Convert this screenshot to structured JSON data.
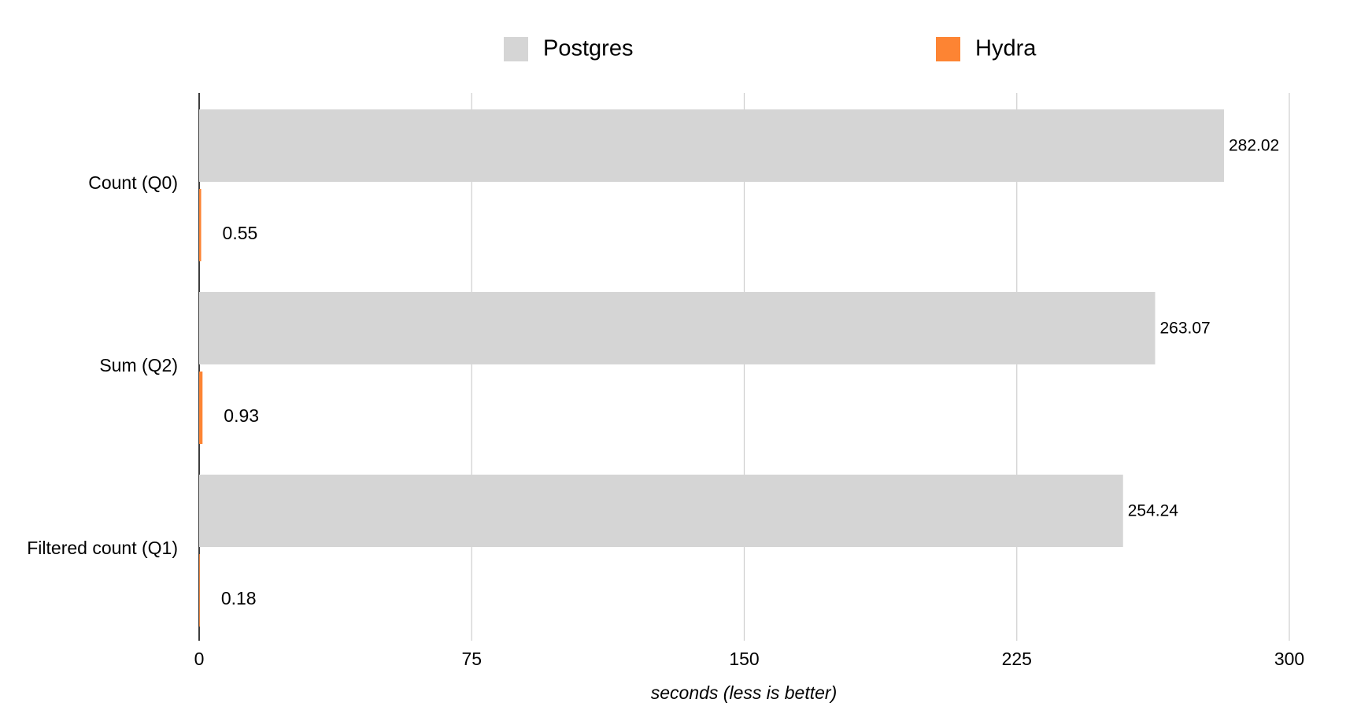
{
  "chart_data": {
    "type": "bar",
    "orientation": "horizontal",
    "x_label": "seconds (less is better)",
    "categories": [
      "Count (Q0)",
      "Sum (Q2)",
      "Filtered count (Q1)"
    ],
    "series": [
      {
        "name": "Postgres",
        "color": "#d5d5d5",
        "values": [
          282.02,
          263.07,
          254.24
        ]
      },
      {
        "name": "Hydra",
        "color": "#fd8433",
        "values": [
          0.55,
          0.93,
          0.18
        ]
      }
    ],
    "xlim": [
      0,
      300
    ],
    "xticks": [
      0,
      75,
      150,
      225,
      300
    ],
    "grid": true,
    "legend": "top"
  }
}
